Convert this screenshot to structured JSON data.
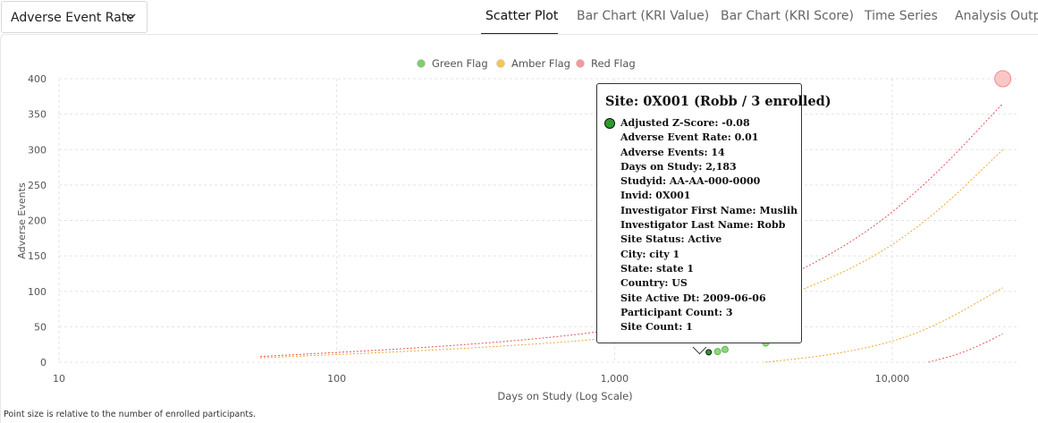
{
  "metric_select": {
    "value": "Adverse Event Rate"
  },
  "tabs": [
    {
      "label": "Scatter Plot",
      "active": true
    },
    {
      "label": "Bar Chart (KRI Value)",
      "active": false
    },
    {
      "label": "Bar Chart (KRI Score)",
      "active": false
    },
    {
      "label": "Time Series",
      "active": false
    },
    {
      "label": "Analysis Output",
      "active": false
    }
  ],
  "footnote": "Point size is relative to the number of enrolled participants.",
  "chart_data": {
    "type": "scatter",
    "xlabel": "Days on Study (Log Scale)",
    "ylabel": "Adverse Events",
    "x_scale": "log",
    "xlim": [
      10,
      30000
    ],
    "ylim": [
      0,
      400
    ],
    "x_ticks": [
      10,
      100,
      1000,
      10000
    ],
    "x_tick_labels": [
      "10",
      "100",
      "1,000",
      "10,000"
    ],
    "y_ticks": [
      0,
      50,
      100,
      150,
      200,
      250,
      300,
      350,
      400
    ],
    "grid": true,
    "legend_position": "top-center",
    "legend": [
      {
        "label": "Green Flag",
        "color": "#7fcf6a"
      },
      {
        "label": "Amber Flag",
        "color": "#f7c55a"
      },
      {
        "label": "Red Flag",
        "color": "#f59a9a"
      }
    ],
    "points": [
      {
        "x": 2183,
        "y": 14,
        "flag": "green",
        "size": 3,
        "highlighted": true
      },
      {
        "x": 2350,
        "y": 15,
        "flag": "green",
        "size": 4
      },
      {
        "x": 2500,
        "y": 18,
        "flag": "green",
        "size": 4
      },
      {
        "x": 3500,
        "y": 27,
        "flag": "green",
        "size": 4
      },
      {
        "x": 25000,
        "y": 400,
        "flag": "red",
        "size": 12
      }
    ],
    "threshold_lines": [
      {
        "flag": "red",
        "color": "#e05555",
        "points": [
          [
            53,
            8
          ],
          [
            200,
            20
          ],
          [
            500,
            32
          ],
          [
            1000,
            45
          ],
          [
            2000,
            70
          ],
          [
            4000,
            115
          ],
          [
            8000,
            180
          ],
          [
            14000,
            260
          ],
          [
            25000,
            365
          ]
        ]
      },
      {
        "flag": "amber",
        "color": "#f0a830",
        "points": [
          [
            53,
            6
          ],
          [
            200,
            16
          ],
          [
            500,
            25
          ],
          [
            1000,
            34
          ],
          [
            2000,
            55
          ],
          [
            4000,
            90
          ],
          [
            8000,
            140
          ],
          [
            14000,
            205
          ],
          [
            25000,
            300
          ]
        ]
      },
      {
        "flag": "amber",
        "color": "#f0a830",
        "points": [
          [
            3500,
            0
          ],
          [
            6000,
            10
          ],
          [
            10000,
            28
          ],
          [
            15000,
            55
          ],
          [
            25000,
            105
          ]
        ]
      },
      {
        "flag": "red",
        "color": "#e05555",
        "points": [
          [
            13500,
            0
          ],
          [
            17000,
            10
          ],
          [
            21000,
            25
          ],
          [
            25000,
            40
          ]
        ]
      }
    ]
  },
  "colors": {
    "green": "#8fd67a",
    "green_stroke": "#5cb84a",
    "green_highlight": "#2a9d2a",
    "amber": "#f7c55a",
    "red": "#f9b9b9",
    "red_stroke": "#f08a8a"
  },
  "tooltip": {
    "title": "Site: 0X001 (Robb / 3 enrolled)",
    "lines": [
      "Adjusted Z-Score: -0.08",
      "Adverse Event Rate: 0.01",
      "Adverse Events: 14",
      "Days on Study: 2,183",
      "Studyid: AA-AA-000-0000",
      "Invid: 0X001",
      "Investigator First Name: Muslih",
      "Investigator Last Name: Robb",
      "Site Status: Active",
      "City: city 1",
      "State: state 1",
      "Country: US",
      "Site Active Dt: 2009-06-06",
      "Participant Count: 3",
      "Site Count: 1"
    ]
  }
}
